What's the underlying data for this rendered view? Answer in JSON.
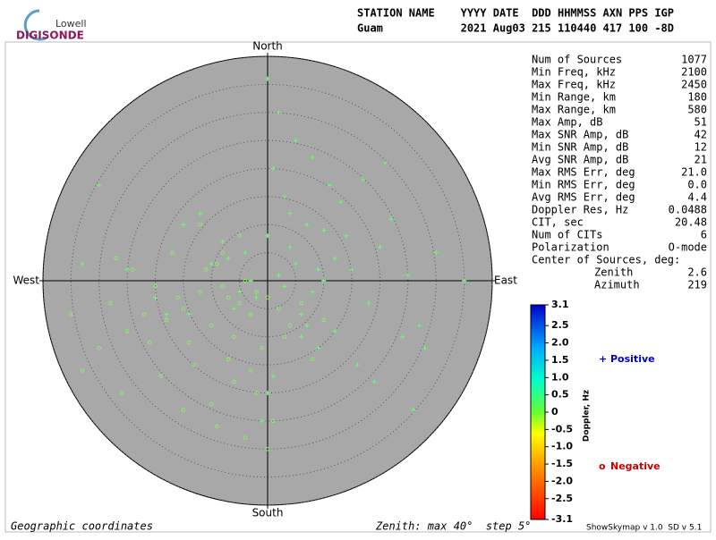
{
  "logo": {
    "top": "Lowell",
    "bottom": "DIGISONDE"
  },
  "header": {
    "line1": "STATION NAME    YYYY DATE  DDD HHMMSS AXN PPS IGP",
    "line2": "Guam            2021 Aug03 215 110440 417 100 -8D"
  },
  "stats": [
    [
      "Num of Sources",
      "1077"
    ],
    [
      "Min Freq, kHz",
      "2100"
    ],
    [
      "Max Freq, kHz",
      "2450"
    ],
    [
      "Min Range, km",
      "180"
    ],
    [
      "Max Range, km",
      "580"
    ],
    [
      "Max Amp, dB",
      "51"
    ],
    [
      "Max SNR Amp, dB",
      "42"
    ],
    [
      "Min SNR Amp, dB",
      "12"
    ],
    [
      "Avg SNR Amp, dB",
      "21"
    ],
    [
      "Max RMS Err, deg",
      "21.0"
    ],
    [
      "Min RMS Err, deg",
      "0.0"
    ],
    [
      "Avg RMS Err, deg",
      "4.4"
    ],
    [
      "Doppler Res, Hz",
      "0.0488"
    ],
    [
      "CIT, sec",
      "20.48"
    ],
    [
      "Num of CITs",
      "6"
    ],
    [
      "Polarization",
      "O-mode"
    ]
  ],
  "center_title": "Center of Sources, deg:",
  "center_rows": [
    [
      "Zenith",
      "2.6"
    ],
    [
      "Azimuth",
      "219"
    ]
  ],
  "footer": {
    "left": "Geographic coordinates",
    "middle": "Zenith: max 40°  step 5°",
    "right": "ShowSkymap v 1.0  SD v 5.1"
  },
  "chart_data": {
    "type": "skymap",
    "directions": {
      "north": "North",
      "south": "South",
      "east": "East",
      "west": "West"
    },
    "rlim": [
      0,
      40
    ],
    "rticks": [
      5,
      10,
      15,
      20,
      25,
      30,
      35,
      40
    ],
    "xlim": [
      -40,
      40
    ],
    "ylim": [
      -40,
      40
    ],
    "series": [
      {
        "name": "Positive",
        "marker": "+",
        "color": "#0000cc",
        "point_color": "#66ff66",
        "x": [
          2,
          5,
          -3,
          8,
          12,
          -6,
          0,
          4,
          15,
          20,
          -10,
          7,
          -2,
          10,
          3,
          -8,
          18,
          25,
          -15,
          1,
          6,
          9,
          -4,
          13,
          22,
          -20,
          30,
          27,
          -25,
          0,
          11,
          16,
          -12,
          5,
          2,
          -1,
          8,
          14,
          19,
          35,
          -33,
          -30,
          24,
          6,
          3,
          -5,
          10,
          17,
          -18,
          0,
          28,
          21,
          12,
          -7,
          4,
          9,
          -14,
          1,
          7,
          26
        ],
        "values": [
          1,
          3,
          0,
          -2,
          4,
          -5,
          8,
          12,
          2,
          6,
          3,
          -8,
          -3,
          9,
          15,
          7,
          -4,
          1,
          10,
          20,
          -10,
          -12,
          5,
          14,
          11,
          -3,
          5,
          -8,
          2,
          -20,
          17,
          -15,
          12,
          25,
          30,
          -25,
          22,
          8,
          -18,
          0,
          3,
          17,
          -10,
          -6,
          -1,
          -2,
          0,
          18,
          -6,
          36,
          -12,
          21,
          -9,
          4,
          6,
          2,
          -6,
          -17,
          10,
          -23
        ]
      },
      {
        "name": "Negative",
        "marker": "o",
        "color": "#cc0000",
        "point_color": "#88ee66",
        "x": [
          -2,
          -5,
          -8,
          -3,
          0,
          -10,
          -12,
          -6,
          -15,
          -4,
          -1,
          -9,
          -18,
          -20,
          -7,
          -14,
          -11,
          2,
          4,
          -3,
          -16,
          -22,
          -25,
          -28,
          -6,
          -13,
          -2,
          -8,
          -30,
          -35,
          -24,
          -19,
          1,
          -5,
          -10,
          3,
          6,
          -17,
          -26,
          -33,
          8,
          -4,
          -12,
          -21,
          -9,
          10,
          -15,
          0,
          -7,
          -27
        ],
        "values": [
          -2,
          -4,
          -1,
          -6,
          -3,
          -8,
          -2,
          -10,
          -5,
          0,
          -12,
          3,
          -7,
          -1,
          -14,
          -11,
          2,
          -5,
          -8,
          -16,
          -3,
          -6,
          -9,
          -4,
          -18,
          -15,
          -20,
          5,
          -12,
          -6,
          2,
          -17,
          -25,
          8,
          -22,
          -10,
          -4,
          5,
          -20,
          -16,
          -14,
          -28,
          10,
          -11,
          -26,
          -7,
          -23,
          -30,
          -3,
          4
        ]
      }
    ],
    "colorbar": {
      "title": "Doppler, Hz",
      "lim": [
        -3.1,
        3.1
      ],
      "ticks": [
        3.1,
        2.5,
        {
          "value": 2,
          "label": "2.0"
        },
        1.5,
        {
          "value": 1,
          "label": "1.0"
        },
        0.5,
        0,
        -0.5,
        {
          "value": -1,
          "label": "-1.0"
        },
        -1.5,
        {
          "value": -2,
          "label": "-2.0"
        },
        -2.5,
        -3.1
      ]
    }
  }
}
